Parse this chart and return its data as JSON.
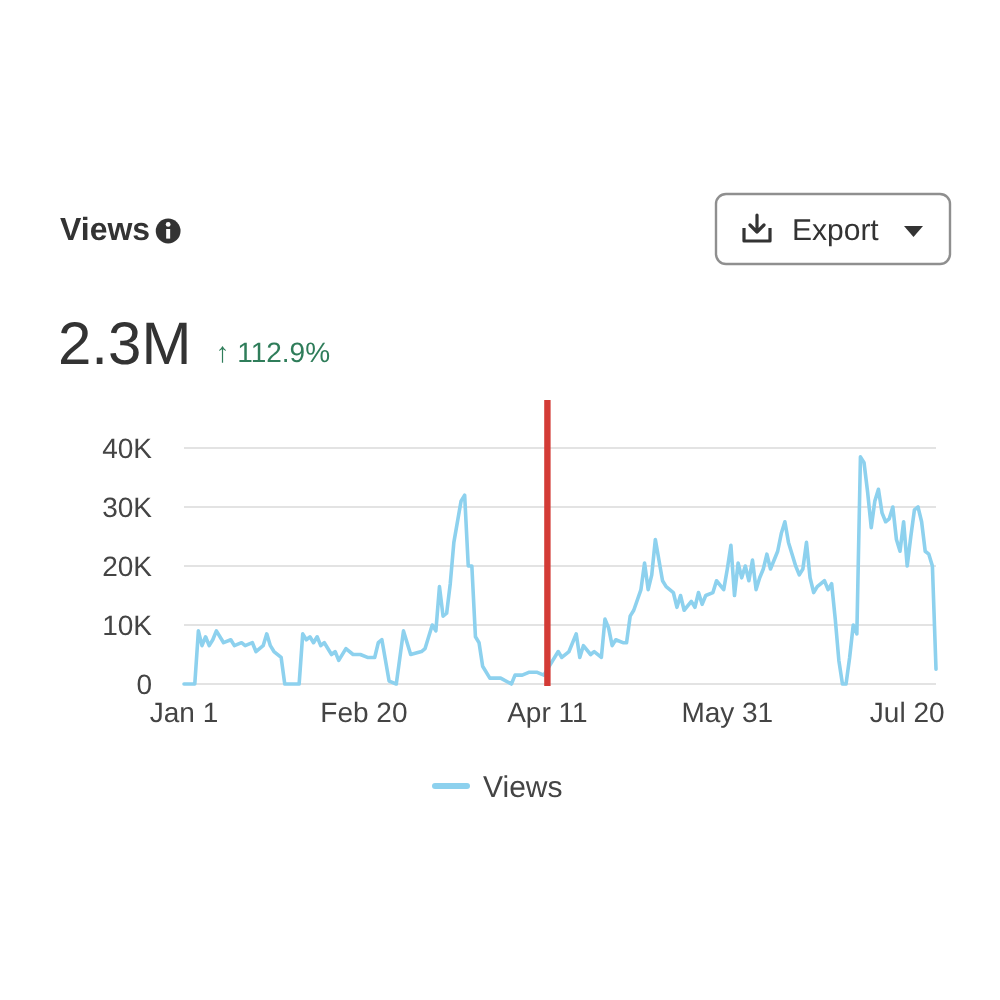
{
  "chart_data": {
    "type": "line",
    "title": "Views",
    "subtitle": "2.3M",
    "annotations": [
      "↑ 112.9%",
      "Export"
    ],
    "x": [
      "--01-01",
      "--01-04",
      "--01-05",
      "--01-06",
      "--01-07",
      "--01-08",
      "--01-09",
      "--01-10",
      "--01-12",
      "--01-14",
      "--01-15",
      "--01-17",
      "--01-18",
      "--01-20",
      "--01-21",
      "--01-23",
      "--01-24",
      "--01-25",
      "--01-26",
      "--01-28",
      "--01-29",
      "--01-31",
      "--02-02",
      "--02-03",
      "--02-04",
      "--02-05",
      "--02-06",
      "--02-07",
      "--02-08",
      "--02-09",
      "--02-11",
      "--02-12",
      "--02-13",
      "--02-15",
      "--02-17",
      "--02-19",
      "--02-21",
      "--02-23",
      "--02-24",
      "--02-25",
      "--02-27",
      "--02-29",
      "--03-02",
      "--03-04",
      "--03-07",
      "--03-08",
      "--03-10",
      "--03-11",
      "--03-12",
      "--03-13",
      "--03-14",
      "--03-15",
      "--03-16",
      "--03-18",
      "--03-19",
      "--03-20",
      "--03-21",
      "--03-22",
      "--03-23",
      "--03-24",
      "--03-26",
      "--03-29",
      "--04-01",
      "--04-02",
      "--04-04",
      "--04-06",
      "--04-08",
      "--04-10",
      "--04-14",
      "--04-15",
      "--04-17",
      "--04-19",
      "--04-20",
      "--04-21",
      "--04-23",
      "--04-24",
      "--04-26",
      "--04-27",
      "--04-28",
      "--04-29",
      "--04-30",
      "--05-02",
      "--05-03",
      "--05-04",
      "--05-05",
      "--05-07",
      "--05-08",
      "--05-09",
      "--05-10",
      "--05-11",
      "--05-13",
      "--05-14",
      "--05-16",
      "--05-17",
      "--05-18",
      "--05-19",
      "--05-21",
      "--05-22",
      "--05-23",
      "--05-24",
      "--05-25",
      "--05-27",
      "--05-28",
      "--05-30",
      "--05-31",
      "--06-01",
      "--06-02",
      "--06-03",
      "--06-04",
      "--06-05",
      "--06-06",
      "--06-07",
      "--06-08",
      "--06-09",
      "--06-10",
      "--06-11",
      "--06-12",
      "--06-14",
      "--06-15",
      "--06-16",
      "--06-17",
      "--06-19",
      "--06-20",
      "--06-21",
      "--06-22",
      "--06-23",
      "--06-24",
      "--06-25",
      "--06-27",
      "--06-28",
      "--06-29",
      "--06-30",
      "--07-01",
      "--07-02",
      "--07-03",
      "--07-04",
      "--07-05",
      "--07-06",
      "--07-07",
      "--07-08",
      "--07-09",
      "--07-10",
      "--07-11",
      "--07-12",
      "--07-13",
      "--07-14",
      "--07-15",
      "--07-16",
      "--07-17",
      "--07-18",
      "--07-19",
      "--07-20",
      "--07-21",
      "--07-22",
      "--07-23",
      "--07-24",
      "--07-25",
      "--07-26",
      "--07-27",
      "--07-28"
    ],
    "series": [
      {
        "name": "Views",
        "color": "#8dd1ee",
        "values": [
          0,
          0,
          9000,
          6500,
          8000,
          6500,
          7500,
          9000,
          7000,
          7500,
          6500,
          7000,
          6500,
          7000,
          5500,
          6500,
          8500,
          6500,
          5500,
          4500,
          0,
          0,
          0,
          8500,
          7500,
          8000,
          7000,
          8000,
          6500,
          7000,
          5000,
          5500,
          4000,
          6000,
          5000,
          5000,
          4500,
          4500,
          7000,
          7500,
          500,
          0,
          9000,
          5000,
          5500,
          6000,
          10000,
          9000,
          16500,
          11500,
          12000,
          17000,
          24000,
          31000,
          32000,
          20000,
          20000,
          8000,
          7000,
          3000,
          1000,
          1000,
          0,
          1500,
          1500,
          2000,
          2000,
          1500,
          5500,
          4500,
          5500,
          8500,
          4500,
          6500,
          5000,
          5500,
          4500,
          11000,
          9500,
          6500,
          7500,
          7000,
          7000,
          11500,
          12500,
          16000,
          20500,
          16000,
          18500,
          24500,
          17500,
          16500,
          15500,
          13000,
          15000,
          12500,
          14000,
          13000,
          15500,
          13500,
          15000,
          15500,
          17500,
          16000,
          19500,
          23500,
          15000,
          20500,
          18000,
          20000,
          17500,
          21000,
          16000,
          18000,
          19500,
          22000,
          19500,
          22500,
          25500,
          27500,
          24000,
          20000,
          18500,
          19500,
          24000,
          18000,
          15500,
          16500,
          17500,
          16000,
          17000,
          11000,
          4000,
          0,
          0,
          4500,
          10000,
          8500,
          38500,
          37500,
          32500,
          26500,
          31000,
          33000,
          29000,
          27500,
          28000,
          30000,
          24500,
          22500,
          27500,
          20000,
          25000,
          29500,
          30000,
          27500,
          22500,
          22000,
          20000,
          2500
        ]
      }
    ],
    "xlim": [
      "--01-01",
      "--07-28"
    ],
    "xticks": [
      {
        "value": "--01-01",
        "label": "Jan 1"
      },
      {
        "value": "--02-20",
        "label": "Feb 20"
      },
      {
        "value": "--04-11",
        "label": "Apr 11"
      },
      {
        "value": "--05-31",
        "label": "May 31"
      },
      {
        "value": "--07-20",
        "label": "Jul 20"
      }
    ],
    "ylim": [
      0,
      40000
    ],
    "yticks": [
      0,
      {
        "value": 10000,
        "label": "10K"
      },
      {
        "value": 20000,
        "label": "20K"
      },
      {
        "value": 30000,
        "label": "30K"
      },
      {
        "value": 40000,
        "label": "40K"
      }
    ],
    "grid": "y",
    "legend": "bottom",
    "ref_lines": [
      {
        "axis": "x",
        "value": "--04-11",
        "color": "#d33b36"
      }
    ]
  }
}
